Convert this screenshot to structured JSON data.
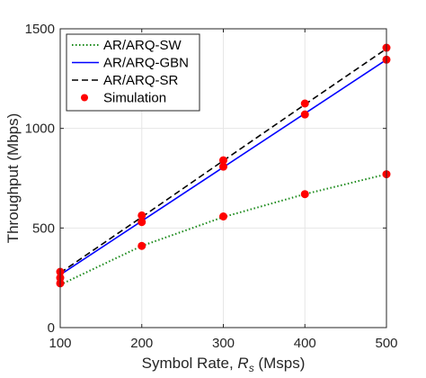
{
  "chart_data": {
    "type": "line",
    "title": "",
    "xlabel": "Symbol Rate, ",
    "xlabel_var": "R",
    "xlabel_sub": "s",
    "xlabel_unit": " (Msps)",
    "ylabel": "Throughput (Mbps)",
    "xlim": [
      100,
      500
    ],
    "ylim": [
      0,
      1500
    ],
    "xticks": [
      "100",
      "200",
      "300",
      "400",
      "500"
    ],
    "yticks": [
      "0",
      "500",
      "1000",
      "1500"
    ],
    "grid": true,
    "legend_position": "top-left",
    "series": [
      {
        "name": "AR/ARQ-SW",
        "style": "dotted",
        "color": "#1a8a1a",
        "x": [
          100,
          200,
          300,
          400,
          500
        ],
        "y": [
          215,
          410,
          555,
          670,
          770
        ]
      },
      {
        "name": "AR/ARQ-GBN",
        "style": "solid",
        "color": "#0000ff",
        "x": [
          100,
          200,
          300,
          400,
          500
        ],
        "y": [
          265,
          535,
          805,
          1075,
          1345
        ]
      },
      {
        "name": "AR/ARQ-SR",
        "style": "dashed",
        "color": "#000000",
        "x": [
          100,
          200,
          300,
          400,
          500
        ],
        "y": [
          275,
          555,
          838,
          1120,
          1400
        ]
      },
      {
        "name": "Simulation",
        "style": "markers",
        "color": "#ff0000",
        "x": [
          100,
          100,
          100,
          200,
          200,
          200,
          300,
          300,
          300,
          400,
          400,
          400,
          500,
          500,
          500
        ],
        "y": [
          222,
          250,
          280,
          410,
          530,
          563,
          558,
          808,
          840,
          670,
          1070,
          1125,
          770,
          1345,
          1405
        ]
      }
    ]
  }
}
